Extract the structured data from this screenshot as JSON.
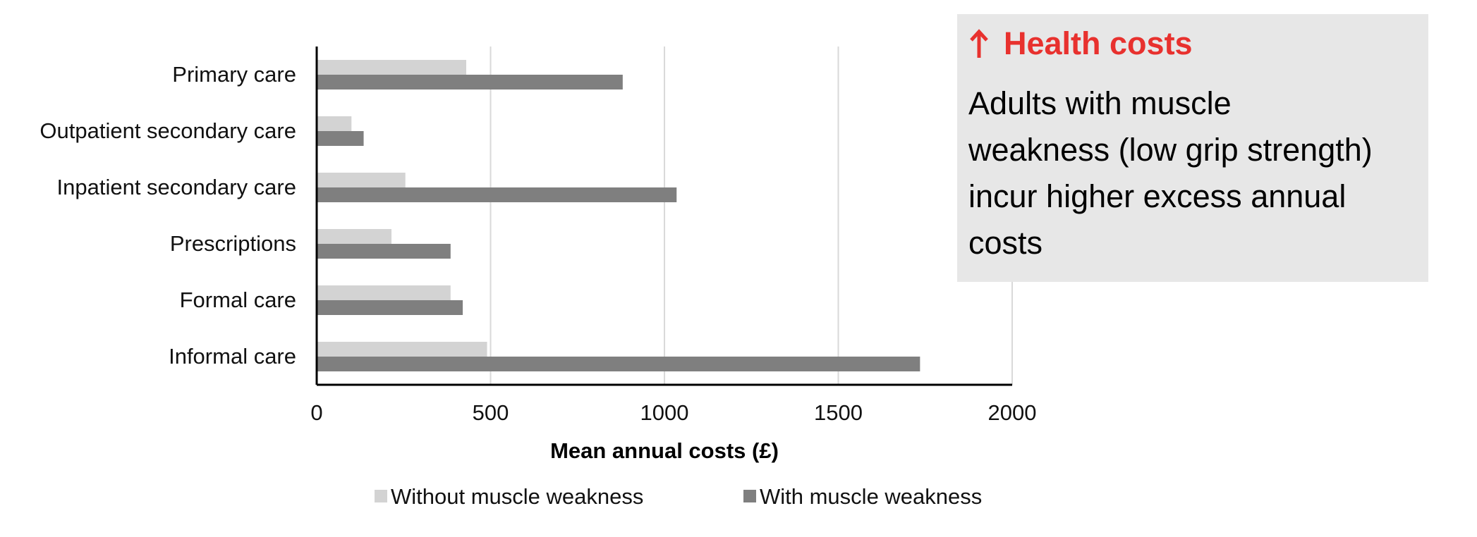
{
  "chart_data": {
    "type": "bar",
    "orientation": "horizontal",
    "categories": [
      "Primary care",
      "Outpatient secondary care",
      "Inpatient secondary care",
      "Prescriptions",
      "Formal care",
      "Informal care"
    ],
    "series": [
      {
        "name": "Without muscle weakness",
        "values": [
          430,
          100,
          255,
          215,
          385,
          490
        ],
        "color": "#d3d3d3"
      },
      {
        "name": "With muscle weakness",
        "values": [
          880,
          135,
          1035,
          385,
          420,
          1735
        ],
        "color": "#7f7f7f"
      }
    ],
    "xlabel": "Mean annual costs (£)",
    "ylabel": "",
    "xlim": [
      0,
      2000
    ],
    "xticks": [
      "0",
      "500",
      "1000",
      "1500",
      "2000"
    ],
    "grid": true,
    "legend_position": "bottom"
  },
  "callout": {
    "arrow": "↑",
    "title": "Health costs",
    "lines": [
      "Adults with muscle",
      "weakness (low grip strength)",
      "incur higher excess annual",
      "costs"
    ],
    "background": "#e7e7e7",
    "title_color": "#e8312e"
  }
}
